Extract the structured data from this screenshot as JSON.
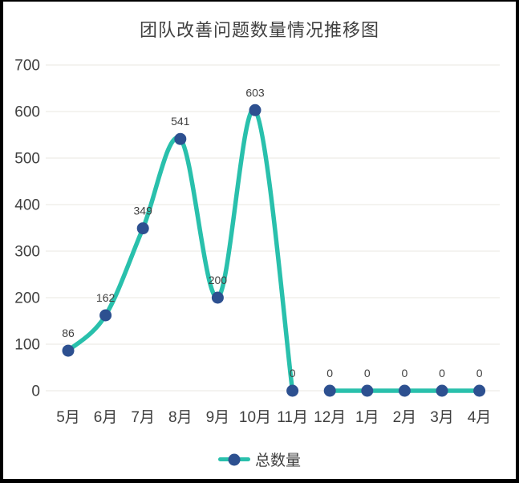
{
  "chart_data": {
    "type": "line",
    "title": "团队改善问题数量情况推移图",
    "categories": [
      "5月",
      "6月",
      "7月",
      "8月",
      "9月",
      "10月",
      "11月",
      "12月",
      "1月",
      "2月",
      "3月",
      "4月"
    ],
    "series": [
      {
        "name": "总数量",
        "values": [
          86,
          162,
          349,
          541,
          200,
          603,
          0,
          0,
          0,
          0,
          0,
          0
        ]
      }
    ],
    "data_labels": [
      "86",
      "162",
      "349",
      "541",
      "200",
      "603",
      "0",
      "0",
      "0",
      "0",
      "0",
      "0"
    ],
    "data_labels_shown": true,
    "ylim": [
      0,
      700
    ],
    "yticks": [
      0,
      100,
      200,
      300,
      400,
      500,
      600,
      700
    ],
    "ytick_labels": [
      "0",
      "100",
      "200",
      "300",
      "400",
      "500",
      "600",
      "700"
    ],
    "grid": "horizontal",
    "smooth": true,
    "legend_position": "bottom",
    "line_gap_between": [
      "11月",
      "12月"
    ],
    "colors": {
      "line": "#29c0ac",
      "marker": "#2d5090",
      "grid": "#f1efec",
      "axis_text": "#3f3f3f",
      "title_text": "#404040",
      "data_label_text": "#404040",
      "background": "#ffffff",
      "frame_border": "#000000"
    }
  }
}
